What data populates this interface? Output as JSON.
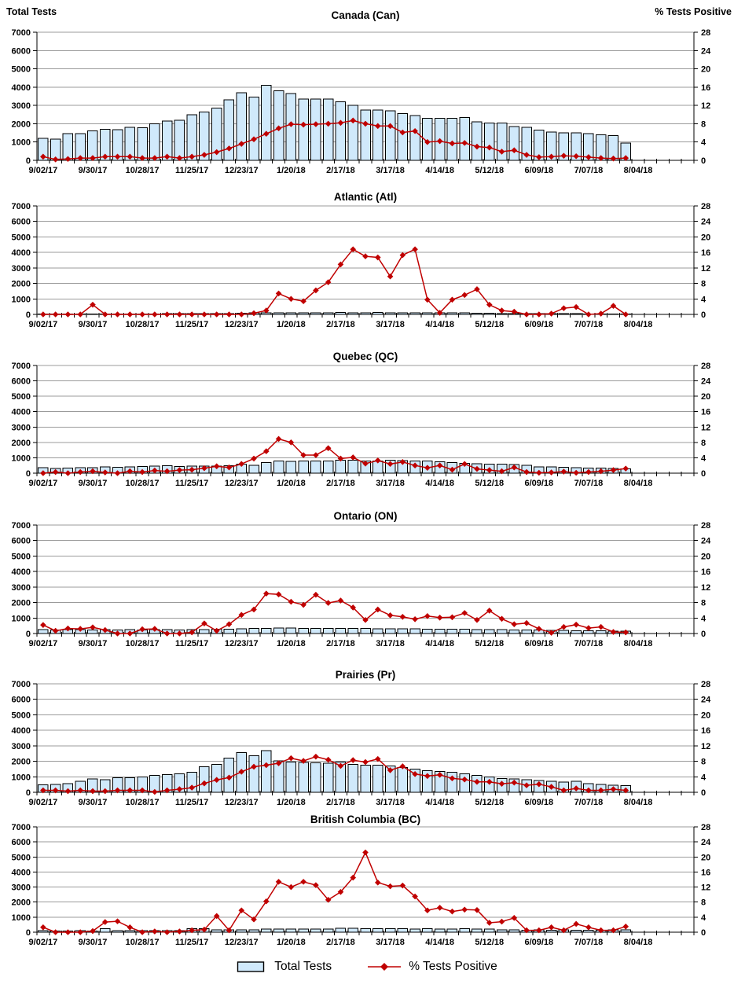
{
  "header": {
    "left_axis_title": "Total Tests",
    "right_axis_title": "% Tests Positive"
  },
  "legend": {
    "bars_label": "Total Tests",
    "line_label": "% Tests Positive"
  },
  "colors": {
    "bar_fill": "#D0E9FB",
    "bar_border": "#000000",
    "line": "#C00000",
    "gridline": "#9B9B9B",
    "axis": "#000000",
    "background": "#FFFFFF"
  },
  "axes": {
    "y_left": {
      "title": "Total Tests",
      "min": 0,
      "max": 7000,
      "step": 1000
    },
    "y_right": {
      "title": "% Tests Positive",
      "min": 0,
      "max": 28,
      "step": 4
    },
    "x_tick_labels": [
      "9/02/17",
      "9/30/17",
      "10/28/17",
      "11/25/17",
      "12/23/17",
      "1/20/18",
      "2/17/18",
      "3/17/18",
      "4/14/18",
      "5/12/18",
      "6/09/18",
      "7/07/18",
      "8/04/18"
    ],
    "weeks_per_label": 4,
    "grid": true
  },
  "chart_data": [
    {
      "id": "canada",
      "region": "Canada (Can)",
      "type": "bar+line",
      "series": [
        {
          "name": "Total Tests",
          "type": "bar",
          "axis": "left",
          "values": [
            1200,
            1150,
            1450,
            1470,
            1600,
            1700,
            1670,
            1800,
            1790,
            2000,
            2150,
            2200,
            2500,
            2650,
            2850,
            3300,
            3700,
            3450,
            4100,
            3800,
            3650,
            3350,
            3350,
            3350,
            3200,
            3000,
            2750,
            2750,
            2700,
            2550,
            2450,
            2300,
            2300,
            2300,
            2350,
            2100,
            2050,
            2050,
            1850,
            1800,
            1650,
            1550,
            1500,
            1500,
            1450,
            1400,
            1350,
            950
          ]
        },
        {
          "name": "% Tests Positive",
          "type": "line",
          "axis": "right",
          "values": [
            0.8,
            0.2,
            0.3,
            0.5,
            0.5,
            0.8,
            0.8,
            0.8,
            0.5,
            0.5,
            0.8,
            0.5,
            0.8,
            1.2,
            1.8,
            2.6,
            3.6,
            4.6,
            5.8,
            7.0,
            7.9,
            7.8,
            7.9,
            8.0,
            8.2,
            8.7,
            8.0,
            7.5,
            7.5,
            6.1,
            6.4,
            4.0,
            4.2,
            3.7,
            3.8,
            3.0,
            2.8,
            1.9,
            2.2,
            1.2,
            0.7,
            0.8,
            1.0,
            0.9,
            0.7,
            0.5,
            0.4,
            0.5
          ]
        }
      ]
    },
    {
      "id": "atlantic",
      "region": "Atlantic (Atl)",
      "type": "bar+line",
      "series": [
        {
          "name": "Total Tests",
          "type": "bar",
          "axis": "left",
          "values": [
            30,
            25,
            30,
            30,
            30,
            35,
            30,
            35,
            30,
            35,
            40,
            40,
            40,
            45,
            50,
            60,
            80,
            90,
            100,
            110,
            110,
            100,
            100,
            110,
            120,
            110,
            110,
            120,
            110,
            100,
            100,
            110,
            100,
            90,
            90,
            80,
            70,
            60,
            60,
            50,
            50,
            40,
            40,
            40,
            35,
            30,
            30,
            25
          ]
        },
        {
          "name": "% Tests Positive",
          "type": "line",
          "axis": "right",
          "values": [
            0,
            0,
            0,
            0,
            2.5,
            0,
            0,
            0,
            0,
            0,
            0,
            0,
            0,
            0,
            0,
            0,
            0,
            0.3,
            1.0,
            5.4,
            4.0,
            3.4,
            6.2,
            8.3,
            12.9,
            16.8,
            15.0,
            14.7,
            9.8,
            15.3,
            16.8,
            3.8,
            0.4,
            3.8,
            5.0,
            6.5,
            2.5,
            1.0,
            0.7,
            0,
            0,
            0.2,
            1.6,
            1.9,
            0,
            0.2,
            2.2,
            0
          ]
        }
      ]
    },
    {
      "id": "quebec",
      "region": "Quebec (QC)",
      "type": "bar+line",
      "series": [
        {
          "name": "Total Tests",
          "type": "bar",
          "axis": "left",
          "values": [
            350,
            300,
            330,
            370,
            350,
            400,
            390,
            420,
            430,
            450,
            480,
            430,
            450,
            470,
            450,
            480,
            600,
            520,
            700,
            800,
            760,
            800,
            780,
            800,
            850,
            840,
            800,
            780,
            850,
            830,
            800,
            780,
            750,
            700,
            650,
            620,
            600,
            580,
            550,
            520,
            420,
            400,
            380,
            350,
            330,
            320,
            300,
            280
          ]
        },
        {
          "name": "% Tests Positive",
          "type": "line",
          "axis": "right",
          "values": [
            0,
            0.3,
            0,
            0.3,
            0.5,
            0.2,
            0,
            0.5,
            0.3,
            0.7,
            0.5,
            0.8,
            0.9,
            1.3,
            1.8,
            1.5,
            2.4,
            3.8,
            5.7,
            8.9,
            8.0,
            4.7,
            4.7,
            6.5,
            3.8,
            4.1,
            2.5,
            3.3,
            2.4,
            2.9,
            2.0,
            1.4,
            2.0,
            0.9,
            2.4,
            1.1,
            0.8,
            0.5,
            1.5,
            0.3,
            0.1,
            0.2,
            0.4,
            0.1,
            0.3,
            0.5,
            0.8,
            1.2
          ]
        }
      ]
    },
    {
      "id": "ontario",
      "region": "Ontario (ON)",
      "type": "bar+line",
      "series": [
        {
          "name": "Total Tests",
          "type": "bar",
          "axis": "left",
          "values": [
            250,
            230,
            260,
            250,
            240,
            250,
            240,
            250,
            240,
            250,
            250,
            240,
            250,
            260,
            270,
            280,
            300,
            320,
            340,
            350,
            350,
            340,
            330,
            340,
            330,
            340,
            320,
            310,
            300,
            310,
            300,
            290,
            280,
            280,
            270,
            260,
            250,
            250,
            240,
            230,
            220,
            210,
            200,
            190,
            180,
            170,
            150,
            140
          ]
        },
        {
          "name": "% Tests Positive",
          "type": "line",
          "axis": "right",
          "values": [
            2.2,
            0.7,
            1.3,
            1.2,
            1.6,
            0.9,
            0,
            0,
            1.1,
            1.2,
            0,
            0,
            0.3,
            2.6,
            0.7,
            2.4,
            4.8,
            6.2,
            10.3,
            10.1,
            8.2,
            7.4,
            10.0,
            7.9,
            8.5,
            6.7,
            3.5,
            6.2,
            4.7,
            4.3,
            3.7,
            4.5,
            4.1,
            4.2,
            5.3,
            3.5,
            5.9,
            3.8,
            2.4,
            2.7,
            1.2,
            0.2,
            1.7,
            2.3,
            1.4,
            1.7,
            0.4,
            0.3
          ]
        }
      ]
    },
    {
      "id": "prairies",
      "region": "Prairies (Pr)",
      "type": "bar+line",
      "series": [
        {
          "name": "Total Tests",
          "type": "bar",
          "axis": "left",
          "values": [
            480,
            500,
            560,
            700,
            850,
            800,
            950,
            950,
            1000,
            1100,
            1150,
            1200,
            1300,
            1650,
            1800,
            2200,
            2550,
            2350,
            2700,
            2020,
            1950,
            1920,
            1900,
            1870,
            1950,
            1800,
            1750,
            1750,
            1700,
            1600,
            1500,
            1400,
            1350,
            1300,
            1200,
            1100,
            1000,
            900,
            850,
            800,
            750,
            700,
            650,
            700,
            550,
            500,
            450,
            420
          ]
        },
        {
          "name": "% Tests Positive",
          "type": "line",
          "axis": "right",
          "values": [
            0.5,
            0.5,
            0.3,
            0.5,
            0.3,
            0.3,
            0.5,
            0.5,
            0.5,
            0.1,
            0.5,
            0.8,
            1.2,
            2.3,
            3.2,
            3.8,
            5.3,
            6.6,
            7.0,
            7.5,
            8.8,
            8.1,
            9.2,
            8.4,
            6.8,
            8.3,
            7.8,
            8.6,
            5.7,
            6.7,
            4.7,
            4.2,
            4.5,
            3.6,
            3.3,
            2.7,
            2.7,
            2.2,
            2.5,
            1.8,
            2.1,
            1.4,
            0.5,
            1.0,
            0.5,
            0.5,
            0.8,
            0.5
          ]
        }
      ]
    },
    {
      "id": "bc",
      "region": "British Columbia (BC)",
      "type": "bar+line",
      "series": [
        {
          "name": "Total Tests",
          "type": "bar",
          "axis": "left",
          "values": [
            100,
            80,
            90,
            100,
            90,
            240,
            100,
            100,
            110,
            100,
            110,
            100,
            240,
            240,
            150,
            150,
            150,
            160,
            200,
            200,
            210,
            200,
            200,
            200,
            250,
            250,
            240,
            240,
            230,
            230,
            220,
            230,
            220,
            210,
            230,
            220,
            200,
            150,
            150,
            140,
            150,
            140,
            150,
            140,
            130,
            140,
            150,
            160
          ]
        },
        {
          "name": "% Tests Positive",
          "type": "line",
          "axis": "right",
          "values": [
            1.3,
            0,
            0,
            0,
            0.3,
            2.7,
            2.9,
            1.3,
            0,
            0.2,
            0,
            0.2,
            0.5,
            0.7,
            4.3,
            0.5,
            5.8,
            3.4,
            8.2,
            13.4,
            12.0,
            13.4,
            12.5,
            8.6,
            10.7,
            14.5,
            21.2,
            13.2,
            12.2,
            12.4,
            9.5,
            5.8,
            6.5,
            5.5,
            6.0,
            5.9,
            2.5,
            2.8,
            3.8,
            0.5,
            0.5,
            1.3,
            0.5,
            2.2,
            1.3,
            0.5,
            0.5,
            1.5
          ]
        }
      ]
    }
  ]
}
